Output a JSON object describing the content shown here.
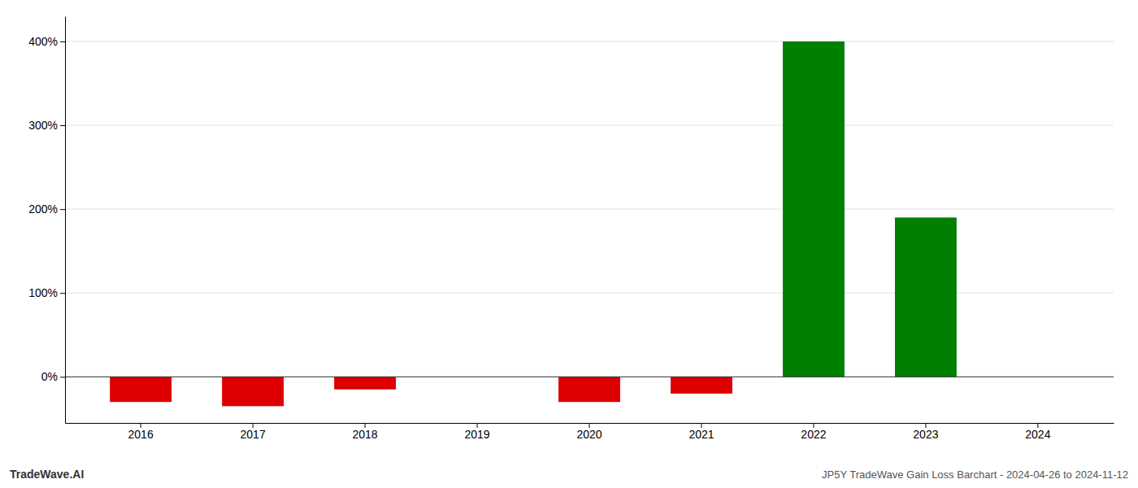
{
  "chart_data": {
    "type": "bar",
    "title": "JP5Y TradeWave Gain Loss Barchart - 2024-04-26 to 2024-11-12",
    "annotations": [
      "TradeWave.AI"
    ],
    "categories": [
      "2016",
      "2017",
      "2018",
      "2019",
      "2020",
      "2021",
      "2022",
      "2023",
      "2024"
    ],
    "values": [
      -30,
      -35,
      -15,
      0,
      -30,
      -20,
      400,
      190,
      0
    ],
    "colors": [
      "#dd0000",
      "#dd0000",
      "#dd0000",
      null,
      "#dd0000",
      "#dd0000",
      "#008000",
      "#008000",
      null
    ],
    "ylim": [
      -55,
      430
    ],
    "yticks": [
      {
        "value": 0,
        "label": "0%"
      },
      {
        "value": 100,
        "label": "100%"
      },
      {
        "value": 200,
        "label": "200%"
      },
      {
        "value": 300,
        "label": "300%"
      },
      {
        "value": 400,
        "label": "400%"
      }
    ],
    "grid": true
  }
}
